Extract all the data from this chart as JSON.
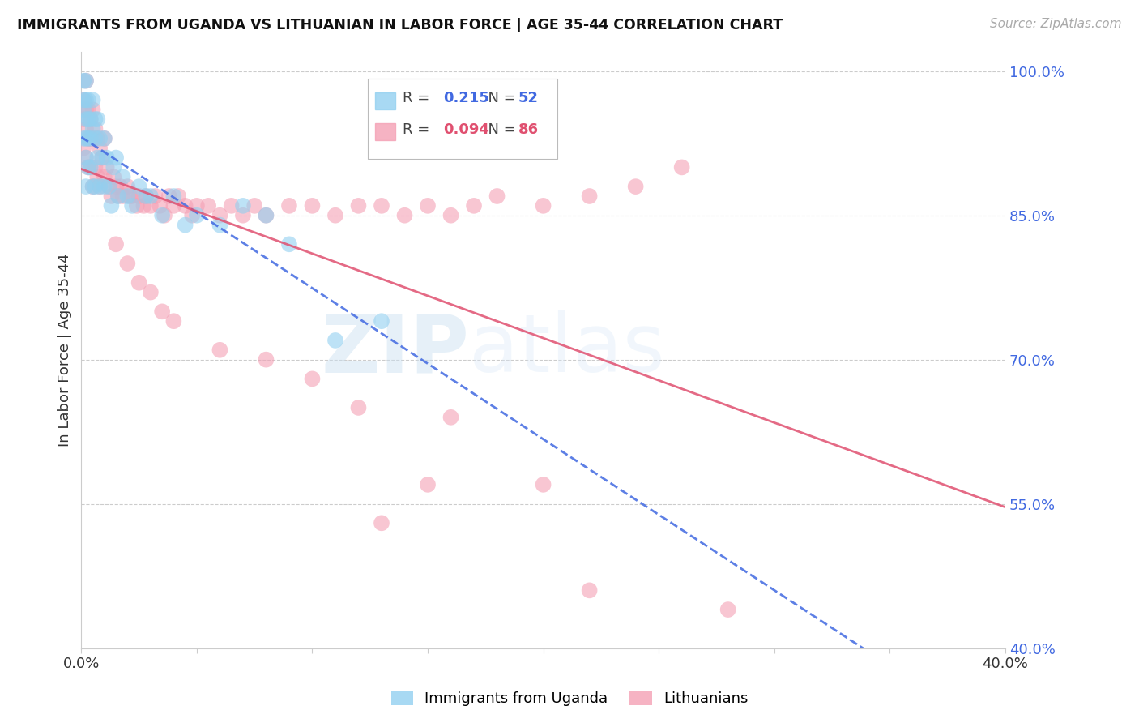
{
  "title": "IMMIGRANTS FROM UGANDA VS LITHUANIAN IN LABOR FORCE | AGE 35-44 CORRELATION CHART",
  "source": "Source: ZipAtlas.com",
  "ylabel": "In Labor Force | Age 35-44",
  "xlim": [
    0.0,
    0.4
  ],
  "ylim": [
    0.4,
    1.02
  ],
  "yticks_right": [
    1.0,
    0.85,
    0.7,
    0.55,
    0.4
  ],
  "ytick_right_labels": [
    "100.0%",
    "85.0%",
    "70.0%",
    "55.0%",
    "40.0%"
  ],
  "grid_color": "#cccccc",
  "background_color": "#ffffff",
  "uganda_color": "#92d0f0",
  "lithuanian_color": "#f4a0b5",
  "uganda_label": "Immigrants from Uganda",
  "lithuanian_label": "Lithuanians",
  "R_uganda": 0.215,
  "N_uganda": 52,
  "R_lithuanian": 0.094,
  "N_lithuanian": 86,
  "uganda_trend_color": "#4169e1",
  "lithuanian_trend_color": "#e05070",
  "uganda_x": [
    0.001,
    0.001,
    0.001,
    0.001,
    0.002,
    0.002,
    0.002,
    0.002,
    0.002,
    0.002,
    0.003,
    0.003,
    0.003,
    0.003,
    0.004,
    0.004,
    0.004,
    0.005,
    0.005,
    0.005,
    0.006,
    0.006,
    0.006,
    0.007,
    0.007,
    0.008,
    0.008,
    0.009,
    0.01,
    0.01,
    0.011,
    0.012,
    0.013,
    0.014,
    0.015,
    0.016,
    0.018,
    0.02,
    0.022,
    0.025,
    0.028,
    0.03,
    0.035,
    0.04,
    0.045,
    0.05,
    0.06,
    0.07,
    0.08,
    0.09,
    0.11,
    0.13
  ],
  "uganda_y": [
    0.99,
    0.97,
    0.96,
    0.93,
    0.99,
    0.97,
    0.95,
    0.93,
    0.91,
    0.88,
    0.97,
    0.95,
    0.93,
    0.9,
    0.95,
    0.93,
    0.9,
    0.97,
    0.94,
    0.88,
    0.95,
    0.93,
    0.88,
    0.95,
    0.91,
    0.93,
    0.88,
    0.91,
    0.93,
    0.88,
    0.91,
    0.88,
    0.86,
    0.9,
    0.91,
    0.87,
    0.89,
    0.87,
    0.86,
    0.88,
    0.87,
    0.87,
    0.85,
    0.87,
    0.84,
    0.85,
    0.84,
    0.86,
    0.85,
    0.82,
    0.72,
    0.74
  ],
  "lithuanian_x": [
    0.001,
    0.001,
    0.001,
    0.002,
    0.002,
    0.002,
    0.002,
    0.003,
    0.003,
    0.003,
    0.004,
    0.004,
    0.004,
    0.005,
    0.005,
    0.005,
    0.006,
    0.006,
    0.007,
    0.007,
    0.008,
    0.008,
    0.009,
    0.01,
    0.01,
    0.011,
    0.012,
    0.013,
    0.014,
    0.015,
    0.016,
    0.017,
    0.018,
    0.02,
    0.021,
    0.022,
    0.024,
    0.025,
    0.027,
    0.028,
    0.03,
    0.032,
    0.034,
    0.036,
    0.038,
    0.04,
    0.042,
    0.045,
    0.048,
    0.05,
    0.055,
    0.06,
    0.065,
    0.07,
    0.075,
    0.08,
    0.09,
    0.1,
    0.11,
    0.12,
    0.13,
    0.14,
    0.15,
    0.16,
    0.17,
    0.18,
    0.2,
    0.22,
    0.24,
    0.26,
    0.015,
    0.02,
    0.025,
    0.03,
    0.035,
    0.04,
    0.06,
    0.08,
    0.1,
    0.12,
    0.13,
    0.15,
    0.16,
    0.2,
    0.22,
    0.28
  ],
  "lithuanian_y": [
    0.97,
    0.95,
    0.92,
    0.99,
    0.96,
    0.94,
    0.91,
    0.96,
    0.93,
    0.9,
    0.95,
    0.93,
    0.9,
    0.96,
    0.93,
    0.88,
    0.94,
    0.9,
    0.93,
    0.89,
    0.92,
    0.88,
    0.91,
    0.93,
    0.89,
    0.9,
    0.88,
    0.87,
    0.89,
    0.88,
    0.87,
    0.88,
    0.87,
    0.88,
    0.87,
    0.87,
    0.86,
    0.87,
    0.86,
    0.87,
    0.86,
    0.87,
    0.86,
    0.85,
    0.87,
    0.86,
    0.87,
    0.86,
    0.85,
    0.86,
    0.86,
    0.85,
    0.86,
    0.85,
    0.86,
    0.85,
    0.86,
    0.86,
    0.85,
    0.86,
    0.86,
    0.85,
    0.86,
    0.85,
    0.86,
    0.87,
    0.86,
    0.87,
    0.88,
    0.9,
    0.82,
    0.8,
    0.78,
    0.77,
    0.75,
    0.74,
    0.71,
    0.7,
    0.68,
    0.65,
    0.53,
    0.57,
    0.64,
    0.57,
    0.46,
    0.44
  ]
}
